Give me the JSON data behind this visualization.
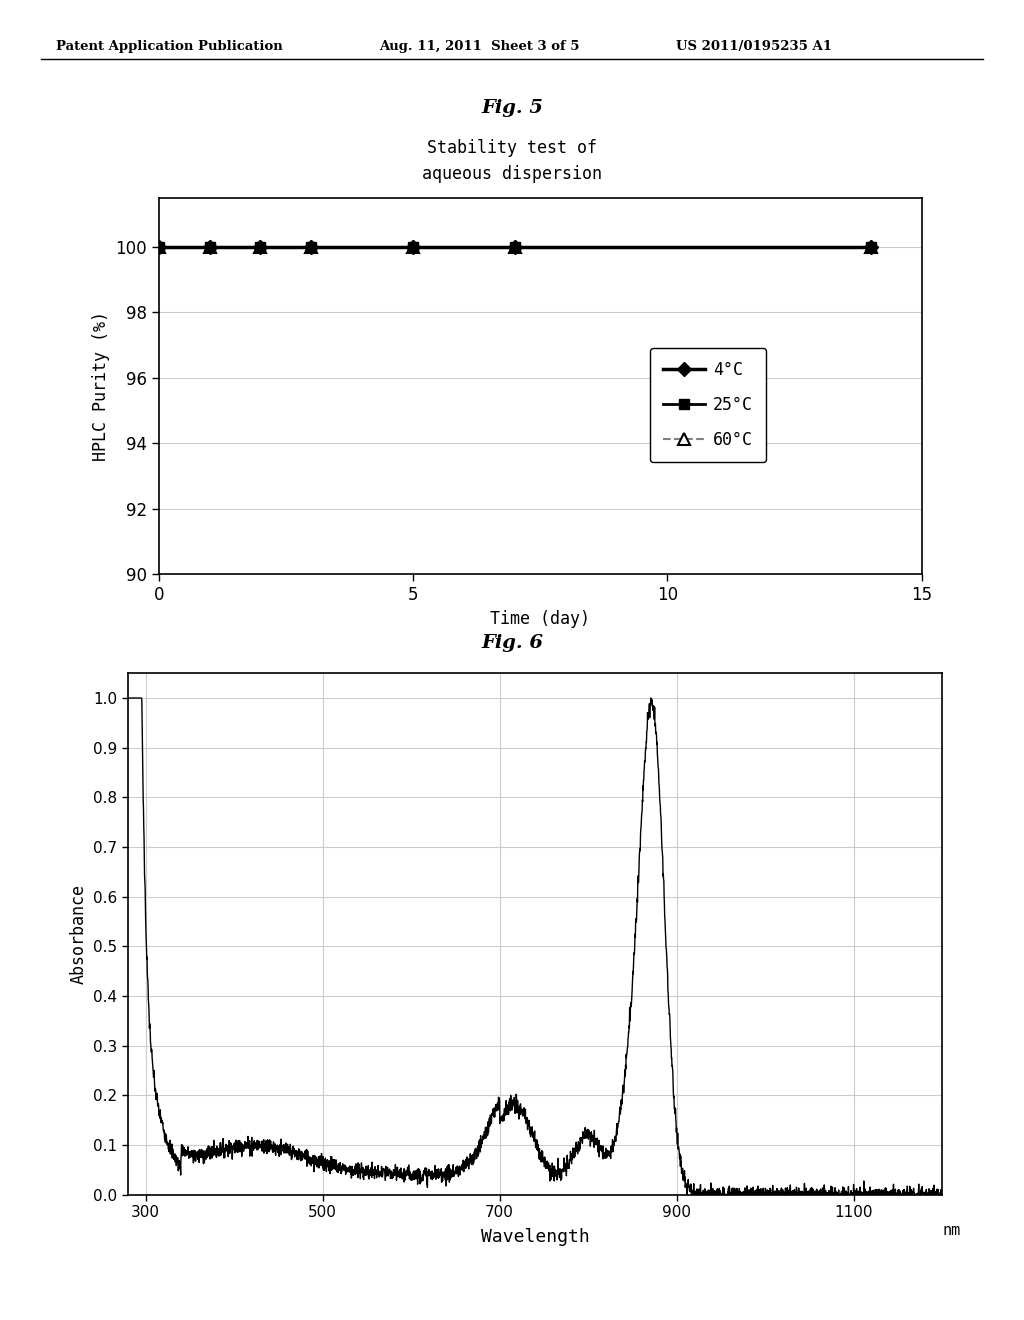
{
  "fig5_title": "Fig. 5",
  "fig5_subtitle": "Stability test of\naqueous dispersion",
  "fig5_xlabel": "Time (day)",
  "fig5_ylabel": "HPLC Purity (%)",
  "fig5_xlim": [
    0,
    15
  ],
  "fig5_ylim": [
    90,
    101.5
  ],
  "fig5_yticks": [
    90,
    92,
    94,
    96,
    98,
    100
  ],
  "fig5_xticks": [
    0,
    5,
    10,
    15
  ],
  "series_4C_x": [
    0,
    1,
    2,
    3,
    5,
    7,
    14
  ],
  "series_4C_y": [
    100,
    100,
    100,
    100,
    100,
    100,
    100
  ],
  "series_25C_x": [
    0,
    1,
    2,
    3,
    5,
    7,
    14
  ],
  "series_25C_y": [
    100,
    100,
    100,
    100,
    100,
    100,
    100
  ],
  "series_60C_x": [
    0,
    1,
    2,
    3,
    5,
    7,
    14
  ],
  "series_60C_y": [
    100,
    100,
    100,
    100,
    100,
    100,
    100
  ],
  "fig6_title": "Fig. 6",
  "fig6_xlabel": "Wavelength",
  "fig6_ylabel": "Absorbance",
  "fig6_xunit": "nm",
  "fig6_xlim": [
    280,
    1200
  ],
  "fig6_ylim": [
    0,
    1.05
  ],
  "fig6_xticks": [
    300,
    500,
    700,
    900,
    1100
  ],
  "fig6_yticks": [
    0,
    0.1,
    0.2,
    0.3,
    0.4,
    0.5,
    0.6,
    0.7,
    0.8,
    0.9,
    1
  ],
  "header_left": "Patent Application Publication",
  "header_mid": "Aug. 11, 2011  Sheet 3 of 5",
  "header_right": "US 2011/0195235 A1",
  "background_color": "#ffffff",
  "line_color": "#000000"
}
